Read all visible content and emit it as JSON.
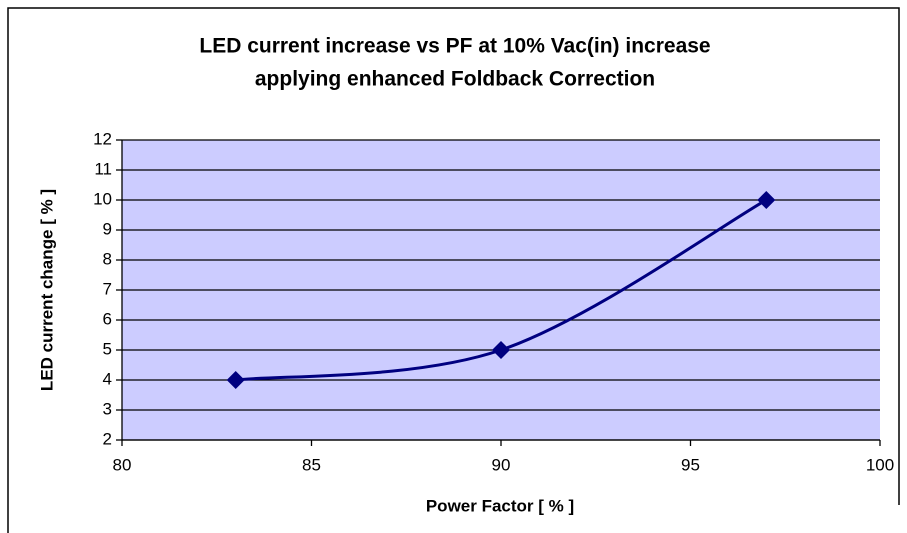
{
  "chart_data": {
    "type": "line",
    "title": [
      "LED current increase vs PF at 10% Vac(in) increase",
      "applying enhanced Foldback Correction"
    ],
    "xlabel": "Power Factor [ % ]",
    "ylabel": "LED current change [ % ]",
    "x": [
      83,
      90,
      97
    ],
    "series": [
      {
        "color": "#000080",
        "values": [
          4,
          5,
          10
        ]
      }
    ],
    "smooth": true,
    "xlim": [
      80,
      100
    ],
    "xticks": [
      80,
      85,
      90,
      95,
      100
    ],
    "ylim": [
      2,
      12
    ],
    "yticks": [
      2,
      3,
      4,
      5,
      6,
      7,
      8,
      9,
      10,
      11,
      12
    ],
    "grid": true,
    "plot_background": "#ccccff"
  }
}
